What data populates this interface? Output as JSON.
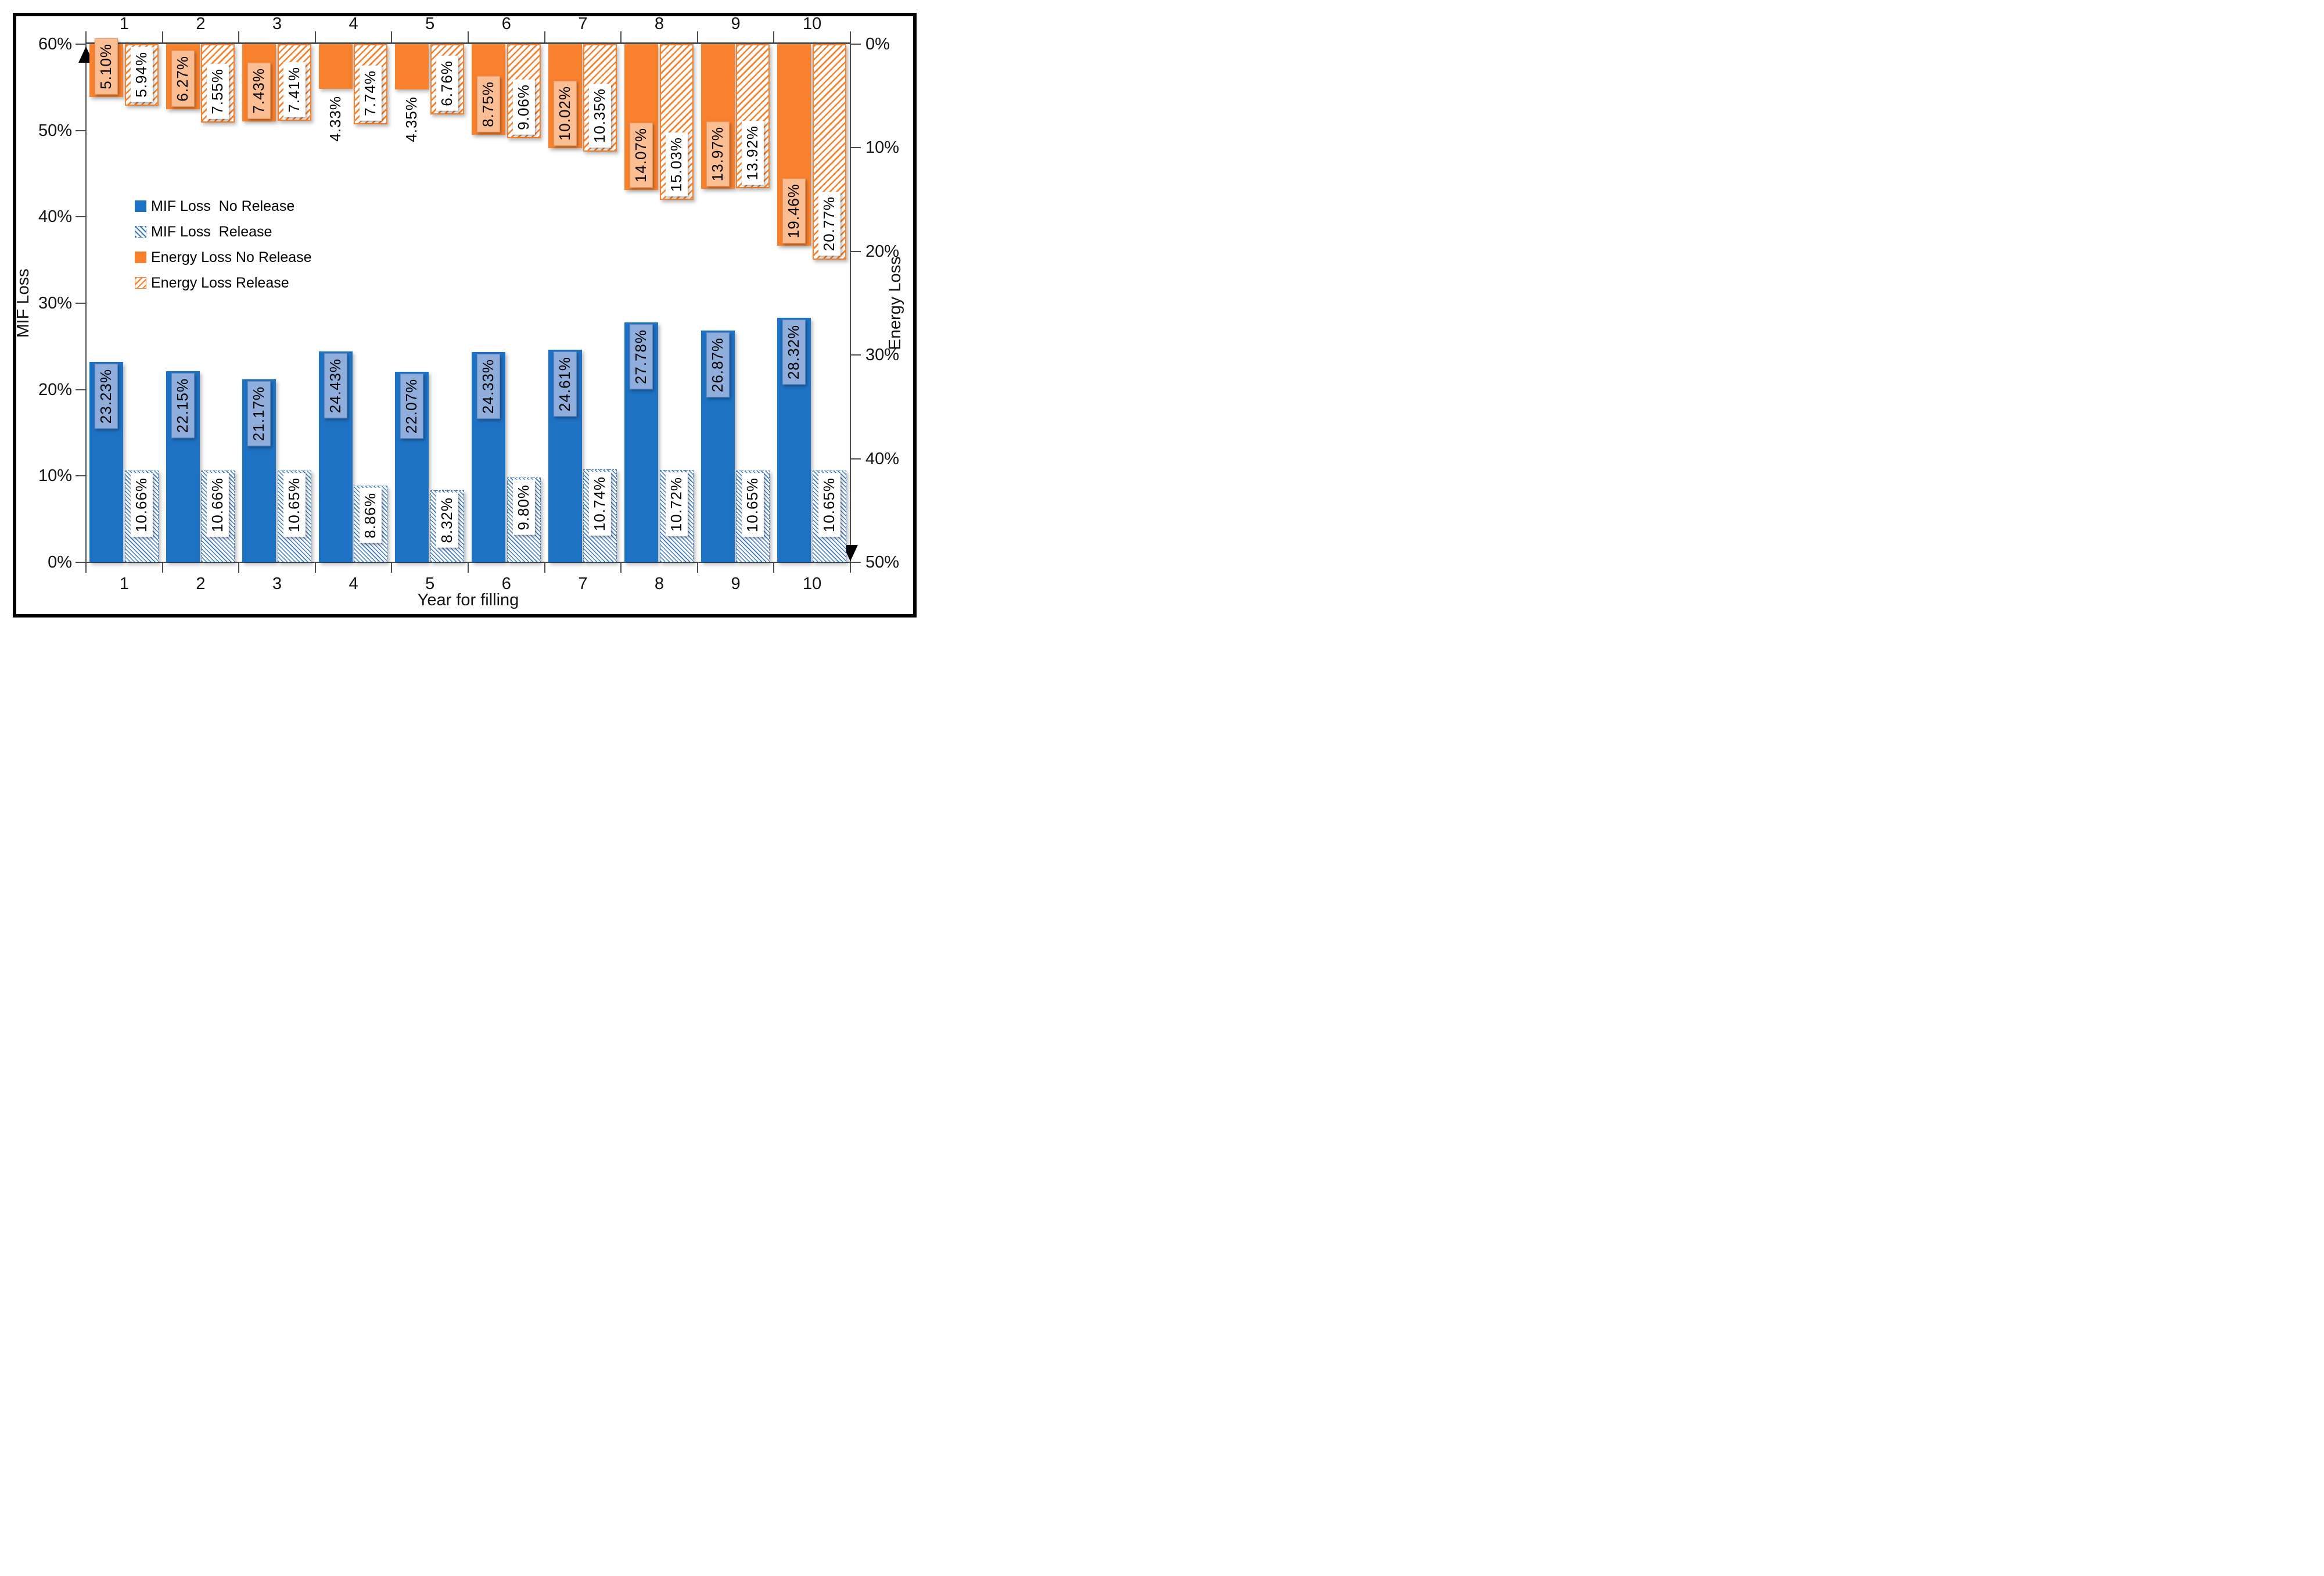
{
  "figure": {
    "x_title": "Year for filling",
    "left_axis": {
      "title": "MIF Loss",
      "min": 0,
      "max": 60,
      "ticks": [
        "60%",
        "50%",
        "40%",
        "30%",
        "20%",
        "10%",
        "0%"
      ]
    },
    "right_axis": {
      "title": "Energy Loss",
      "min": 0,
      "max": 50,
      "inverted": true,
      "ticks": [
        "0%",
        "10%",
        "20%",
        "30%",
        "40%",
        "50%"
      ]
    },
    "top_year_labels": [
      "1",
      "2",
      "3",
      "4",
      "5",
      "6",
      "7",
      "8",
      "9",
      "10"
    ],
    "bottom_year_labels": [
      "1",
      "2",
      "3",
      "4",
      "5",
      "6",
      "7",
      "8",
      "9",
      "10"
    ]
  },
  "legend": {
    "items": [
      {
        "label": "MIF Loss  No Release",
        "swatch": "blue-solid"
      },
      {
        "label": "MIF Loss  Release",
        "swatch": "blue-hatched"
      },
      {
        "label": "Energy Loss No Release",
        "swatch": "orange-solid"
      },
      {
        "label": "Energy Loss Release",
        "swatch": "orange-hatched"
      }
    ]
  },
  "colors": {
    "blue": "#1E72C4",
    "blue_label_box": "#8FAEDC",
    "blue_hatch_line": "#3C79C4",
    "orange": "#F8812D",
    "orange_label_box": "#FBBD92",
    "axis": "#4D4D4D"
  },
  "chart_data": {
    "type": "bar",
    "categories": [
      "1",
      "2",
      "3",
      "4",
      "5",
      "6",
      "7",
      "8",
      "9",
      "10"
    ],
    "xlabel": "Year for filling",
    "left_axis": {
      "label": "MIF Loss",
      "ylim": [
        0,
        60
      ],
      "tick_step": 10,
      "unit": "%"
    },
    "right_axis": {
      "label": "Energy Loss",
      "ylim": [
        0,
        50
      ],
      "tick_step": 10,
      "unit": "%",
      "inverted": true,
      "bars_hang_from_top": true
    },
    "grid": false,
    "legend_position": "upper-left-inside",
    "series": [
      {
        "name": "MIF Loss  No Release",
        "axis": "left",
        "style": "solid",
        "color_key": "blue",
        "values": [
          23.23,
          22.15,
          21.17,
          24.43,
          22.07,
          24.33,
          24.61,
          27.78,
          26.87,
          28.32
        ],
        "labels": [
          "23.23%",
          "22.15%",
          "21.17%",
          "24.43%",
          "22.07%",
          "24.33%",
          "24.61%",
          "27.78%",
          "26.87%",
          "28.32%"
        ],
        "label_anchor": "top",
        "label_box": "blue"
      },
      {
        "name": "MIF Loss  Release",
        "axis": "left",
        "style": "hatched",
        "color_key": "blue",
        "values": [
          10.66,
          10.66,
          10.65,
          8.86,
          8.32,
          9.8,
          10.74,
          10.72,
          10.65,
          10.65
        ],
        "labels": [
          "10.66%",
          "10.66%",
          "10.65%",
          "8.86%",
          "8.32%",
          "9.80%",
          "10.74%",
          "10.72%",
          "10.65%",
          "10.65%"
        ],
        "label_anchor": "top",
        "label_box": "white"
      },
      {
        "name": "Energy Loss No Release",
        "axis": "right",
        "style": "solid",
        "color_key": "orange",
        "values": [
          5.1,
          6.27,
          7.43,
          4.33,
          4.35,
          8.75,
          10.02,
          14.07,
          13.97,
          19.46
        ],
        "labels": [
          "5.10%",
          "6.27%",
          "7.43%",
          "4.33%",
          "4.35%",
          "8.75%",
          "10.02%",
          "14.07%",
          "13.97%",
          "19.46%"
        ],
        "label_anchor": "bottom",
        "label_box": "orange",
        "outside_label_indices": [
          3,
          4
        ]
      },
      {
        "name": "Energy Loss Release",
        "axis": "right",
        "style": "hatched",
        "color_key": "orange",
        "values": [
          5.94,
          7.55,
          7.41,
          7.74,
          6.76,
          9.06,
          10.35,
          15.03,
          13.92,
          20.77
        ],
        "labels": [
          "5.94%",
          "7.55%",
          "7.41%",
          "7.74%",
          "6.76%",
          "9.06%",
          "10.35%",
          "15.03%",
          "13.92%",
          "20.77%"
        ],
        "label_anchor": "bottom",
        "label_box": "white"
      }
    ]
  }
}
